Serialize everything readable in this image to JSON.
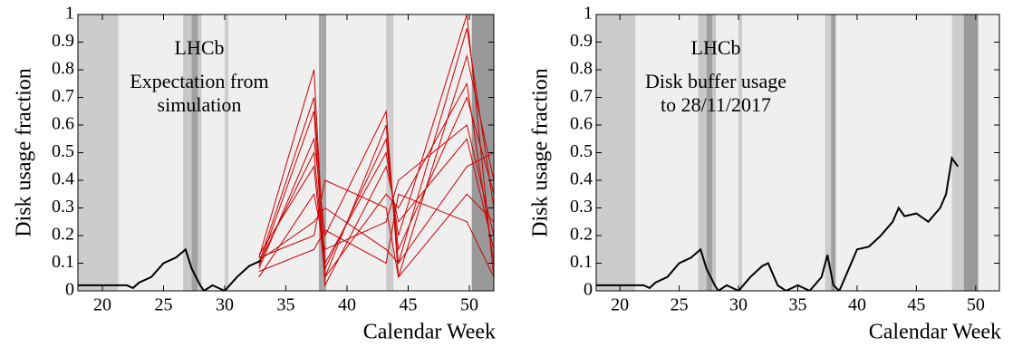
{
  "chart_data": [
    {
      "type": "line",
      "ylabel": "Disk usage fraction",
      "xlabel": "Calendar Week",
      "annotation": [
        "LHCb",
        "Expectation from",
        "simulation"
      ],
      "xlim": [
        18,
        52
      ],
      "ylim": [
        0,
        1
      ],
      "xticks": [
        20,
        25,
        30,
        35,
        40,
        45,
        50
      ],
      "yticks": [
        0,
        0.1,
        0.2,
        0.3,
        0.4,
        0.5,
        0.6,
        0.7,
        0.8,
        0.9,
        1
      ],
      "bands": [
        {
          "x": [
            18,
            52
          ],
          "color": "#efefef"
        },
        {
          "x": [
            18,
            21.3
          ],
          "color": "#cccccc"
        },
        {
          "x": [
            26.6,
            27.3
          ],
          "color": "#c8c8c8"
        },
        {
          "x": [
            27.3,
            27.8
          ],
          "color": "#a0a0a0"
        },
        {
          "x": [
            27.8,
            28.1
          ],
          "color": "#c8c8c8"
        },
        {
          "x": [
            30,
            30.3
          ],
          "color": "#cccccc"
        },
        {
          "x": [
            37.7,
            38.3
          ],
          "color": "#a8a8a8"
        },
        {
          "x": [
            43.2,
            43.8
          ],
          "color": "#cccccc"
        },
        {
          "x": [
            50.2,
            52
          ],
          "color": "#999999"
        }
      ],
      "series": [
        {
          "color": "#cc0000",
          "x": [
            32.8,
            37.3,
            38.2,
            43.2,
            44.2,
            49.8,
            52
          ],
          "values": [
            0.12,
            0.8,
            0.05,
            0.6,
            0.1,
            0.95,
            0.3
          ]
        },
        {
          "color": "#cc0000",
          "x": [
            32.8,
            37.3,
            38.2,
            43.2,
            44.2,
            49.8,
            52
          ],
          "values": [
            0.1,
            0.7,
            0.1,
            0.5,
            0.2,
            1.0,
            0.05
          ]
        },
        {
          "color": "#cc0000",
          "x": [
            32.8,
            37.3,
            38.2,
            43.2,
            44.2,
            49.8,
            52
          ],
          "values": [
            0.08,
            0.55,
            0.2,
            0.65,
            0.05,
            0.85,
            0.4
          ]
        },
        {
          "color": "#cc0000",
          "x": [
            32.8,
            37.3,
            38.2,
            43.2,
            44.2,
            49.8,
            52
          ],
          "values": [
            0.13,
            0.45,
            0.05,
            0.35,
            0.3,
            0.75,
            0.1
          ]
        },
        {
          "color": "#cc0000",
          "x": [
            32.8,
            37.3,
            38.2,
            43.2,
            44.2,
            49.8,
            52
          ],
          "values": [
            0.05,
            0.35,
            0.15,
            0.25,
            0.4,
            0.6,
            0.2
          ]
        },
        {
          "color": "#cc0000",
          "x": [
            32.8,
            37.3,
            38.2,
            43.2,
            44.2,
            49.8,
            52
          ],
          "values": [
            0.11,
            0.25,
            0.3,
            0.15,
            0.1,
            0.45,
            0.5
          ]
        },
        {
          "color": "#cc0000",
          "x": [
            32.8,
            37.3,
            38.2,
            43.2,
            44.2,
            49.8,
            52
          ],
          "values": [
            0.09,
            0.65,
            0.02,
            0.45,
            0.25,
            0.55,
            0.15
          ]
        },
        {
          "color": "#cc0000",
          "x": [
            32.8,
            37.3,
            38.2,
            43.2,
            44.2,
            49.8,
            52
          ],
          "values": [
            0.12,
            0.2,
            0.4,
            0.3,
            0.05,
            0.35,
            0.25
          ]
        },
        {
          "color": "#cc0000",
          "x": [
            32.8,
            37.3,
            38.2,
            43.2,
            44.2,
            49.8,
            52
          ],
          "values": [
            0.1,
            0.5,
            0.08,
            0.55,
            0.15,
            0.7,
            0.35
          ]
        },
        {
          "color": "#cc0000",
          "x": [
            32.8,
            37.3,
            38.2,
            43.2,
            44.2,
            49.8,
            52
          ],
          "values": [
            0.07,
            0.15,
            0.22,
            0.1,
            0.35,
            0.25,
            0.05
          ]
        },
        {
          "color": "#000000",
          "x": [
            18,
            22,
            22.5,
            23,
            24,
            25,
            26,
            26.8,
            27.3,
            28,
            28.3,
            29,
            30,
            31,
            32,
            33
          ],
          "values": [
            0.02,
            0.02,
            0.01,
            0.03,
            0.05,
            0.1,
            0.12,
            0.15,
            0.08,
            0.02,
            0,
            0.02,
            0,
            0.05,
            0.09,
            0.11
          ]
        }
      ]
    },
    {
      "type": "line",
      "ylabel": "Disk usage fraction",
      "xlabel": "Calendar Week",
      "annotation": [
        "LHCb",
        "Disk buffer usage",
        "to 28/11/2017"
      ],
      "xlim": [
        18,
        52
      ],
      "ylim": [
        0,
        1
      ],
      "xticks": [
        20,
        25,
        30,
        35,
        40,
        45,
        50
      ],
      "yticks": [
        0,
        0.1,
        0.2,
        0.3,
        0.4,
        0.5,
        0.6,
        0.7,
        0.8,
        0.9,
        1
      ],
      "bands": [
        {
          "x": [
            18,
            52
          ],
          "color": "#efefef"
        },
        {
          "x": [
            18,
            21.3
          ],
          "color": "#cccccc"
        },
        {
          "x": [
            26.6,
            27.3
          ],
          "color": "#c8c8c8"
        },
        {
          "x": [
            27.3,
            27.8
          ],
          "color": "#a0a0a0"
        },
        {
          "x": [
            27.8,
            28.1
          ],
          "color": "#c8c8c8"
        },
        {
          "x": [
            30,
            30.3
          ],
          "color": "#cccccc"
        },
        {
          "x": [
            37.3,
            37.8
          ],
          "color": "#cccccc"
        },
        {
          "x": [
            37.8,
            38.2
          ],
          "color": "#a0a0a0"
        },
        {
          "x": [
            48,
            49
          ],
          "color": "#cccccc"
        },
        {
          "x": [
            49,
            50.2
          ],
          "color": "#999999"
        }
      ],
      "series": [
        {
          "color": "#000000",
          "x": [
            18,
            22,
            22.5,
            23,
            24,
            25,
            26,
            26.8,
            27.3,
            28,
            28.3,
            29,
            30,
            31,
            32,
            32.5,
            33.3,
            34,
            35,
            36,
            37,
            37.5,
            38,
            38.5,
            39,
            40,
            41,
            42,
            43,
            43.5,
            44,
            45,
            46,
            47,
            47.5,
            48,
            48.5
          ],
          "values": [
            0.02,
            0.02,
            0.01,
            0.03,
            0.05,
            0.1,
            0.12,
            0.15,
            0.08,
            0.02,
            0,
            0.02,
            0,
            0.05,
            0.09,
            0.1,
            0.02,
            0,
            0.02,
            0,
            0.05,
            0.13,
            0.02,
            0,
            0.05,
            0.15,
            0.16,
            0.2,
            0.25,
            0.3,
            0.27,
            0.28,
            0.25,
            0.3,
            0.35,
            0.48,
            0.45
          ]
        }
      ]
    }
  ]
}
